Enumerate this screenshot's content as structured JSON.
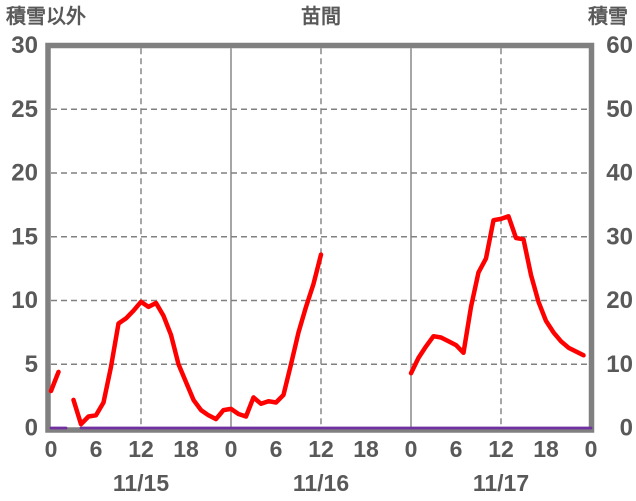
{
  "colors": {
    "frame": "#808080",
    "grid": "#808080",
    "text": "#595959",
    "background": "#ffffff",
    "series_red": "#ff0000",
    "series_purple": "#7030a0"
  },
  "chart_data": {
    "type": "line",
    "title": "苗間",
    "left_axis": {
      "title": "積雪以外",
      "min": 0,
      "max": 30,
      "ticks": [
        0,
        5,
        10,
        15,
        20,
        25,
        30
      ]
    },
    "right_axis": {
      "title": "積雪",
      "min": 0,
      "max": 60,
      "ticks": [
        0,
        10,
        20,
        30,
        40,
        50,
        60
      ]
    },
    "x_axis": {
      "span_hours": 72,
      "tick_hours": [
        0,
        6,
        12,
        18,
        24,
        30,
        36,
        42,
        48,
        54,
        60,
        66,
        72
      ],
      "tick_labels": [
        "0",
        "6",
        "12",
        "18",
        "0",
        "6",
        "12",
        "18",
        "0",
        "6",
        "12",
        "18",
        "0"
      ],
      "dates": [
        {
          "label": "11/15",
          "hour": 12
        },
        {
          "label": "11/16",
          "hour": 36
        },
        {
          "label": "11/17",
          "hour": 60
        }
      ],
      "dashed_gridline_hours": [
        12,
        36,
        60
      ],
      "solid_gridline_hours": [
        24,
        48
      ]
    },
    "grid": {
      "h_dashed": true,
      "v_dashed_at_noon": true,
      "v_solid_at_midnight": true
    },
    "series": [
      {
        "name": "積雪以外",
        "axis": "left",
        "color": "#ff0000",
        "width": 4.5,
        "values": [
          2.9,
          4.4,
          null,
          2.2,
          0.3,
          0.9,
          1.0,
          2.0,
          4.8,
          8.2,
          8.6,
          9.2,
          9.9,
          9.5,
          9.8,
          8.8,
          7.3,
          5.0,
          3.6,
          2.2,
          1.4,
          1.0,
          0.7,
          1.4,
          1.5,
          1.1,
          0.9,
          2.4,
          1.9,
          2.1,
          2.0,
          2.6,
          5.0,
          7.5,
          9.5,
          11.3,
          13.6,
          null,
          null,
          null,
          null,
          null,
          null,
          null,
          null,
          null,
          null,
          null,
          4.3,
          5.5,
          6.4,
          7.2,
          7.1,
          6.8,
          6.5,
          5.9,
          9.5,
          12.2,
          13.3,
          16.3,
          16.4,
          16.6,
          14.9,
          14.8,
          12.0,
          9.9,
          8.4,
          7.5,
          6.8,
          6.3,
          6.0,
          5.7
        ]
      },
      {
        "name": "積雪",
        "axis": "right",
        "color": "#7030a0",
        "width": 2.8,
        "values": [
          0,
          0,
          0,
          null,
          0,
          0,
          0,
          0,
          0,
          0,
          0,
          0,
          0,
          0,
          0,
          0,
          0,
          0,
          0,
          0,
          0,
          0,
          0,
          0,
          0,
          0,
          0,
          0,
          0,
          0,
          0,
          0,
          0,
          0,
          0,
          0,
          0,
          0,
          0,
          0,
          0,
          0,
          0,
          0,
          0,
          0,
          0,
          0,
          0,
          0,
          0,
          0,
          0,
          0,
          0,
          0,
          0,
          0,
          0,
          0,
          0,
          0,
          0,
          0,
          0,
          0,
          0,
          0,
          0,
          0,
          0,
          0,
          0
        ]
      }
    ]
  }
}
